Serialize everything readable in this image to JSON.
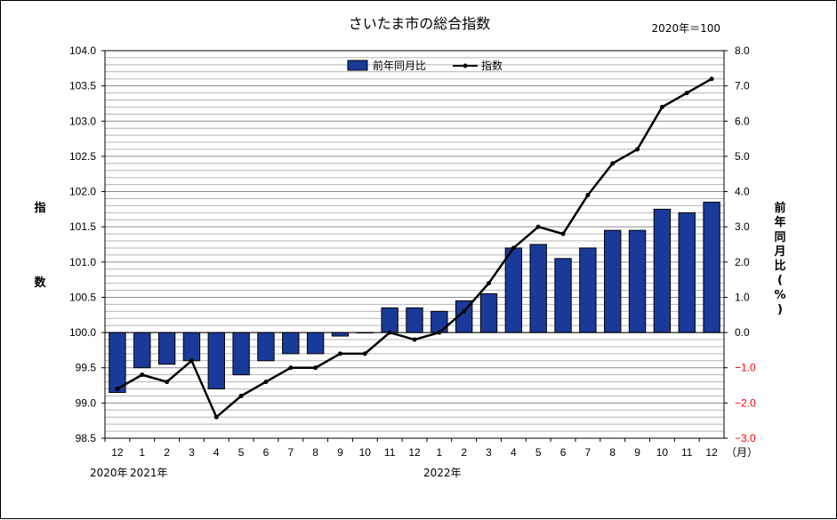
{
  "chart_data": {
    "type": "bar",
    "title": "さいたま市の総合指数",
    "base_note": "2020年＝100",
    "left_axis_label": "指数",
    "right_axis_label": "前年同月比(%)",
    "x_unit_label": "（月）",
    "categories": [
      "12",
      "1",
      "2",
      "3",
      "4",
      "5",
      "6",
      "7",
      "8",
      "9",
      "10",
      "11",
      "12",
      "1",
      "2",
      "3",
      "4",
      "5",
      "6",
      "7",
      "8",
      "9",
      "10",
      "11",
      "12"
    ],
    "year_labels": [
      "2020年",
      "2021年",
      "2022年"
    ],
    "legend": {
      "bar": "前年同月比",
      "line": "指数"
    },
    "yleft": {
      "lim": [
        98.5,
        104.0
      ],
      "step": 0.5,
      "ticks": [
        "98.5",
        "99.0",
        "99.5",
        "100.0",
        "100.5",
        "101.0",
        "101.5",
        "102.0",
        "102.5",
        "103.0",
        "103.5",
        "104.0"
      ]
    },
    "yright": {
      "lim": [
        -3.0,
        8.0
      ],
      "step": 1.0,
      "ticks": [
        "−3.0",
        "−2.0",
        "−1.0",
        "0.0",
        "1.0",
        "2.0",
        "3.0",
        "4.0",
        "5.0",
        "6.0",
        "7.0",
        "8.0"
      ]
    },
    "series": [
      {
        "name": "前年同月比",
        "kind": "bar",
        "axis": "right",
        "color": "#1a3a9a",
        "values": [
          -1.7,
          -1.0,
          -0.9,
          -0.8,
          -1.6,
          -1.2,
          -0.8,
          -0.6,
          -0.6,
          -0.1,
          0.0,
          0.7,
          0.7,
          0.6,
          0.9,
          1.1,
          2.4,
          2.5,
          2.1,
          2.4,
          2.9,
          2.9,
          3.5,
          3.4,
          3.7
        ]
      },
      {
        "name": "指数",
        "kind": "line",
        "axis": "left",
        "color": "#000000",
        "values": [
          99.2,
          99.4,
          99.3,
          99.6,
          98.8,
          99.1,
          99.3,
          99.5,
          99.5,
          99.7,
          99.7,
          100.0,
          99.9,
          100.0,
          100.3,
          100.7,
          101.2,
          101.5,
          101.4,
          101.95,
          102.4,
          102.6,
          103.2,
          103.4,
          103.6
        ]
      }
    ],
    "grid": true,
    "legend_position": "top-center"
  }
}
